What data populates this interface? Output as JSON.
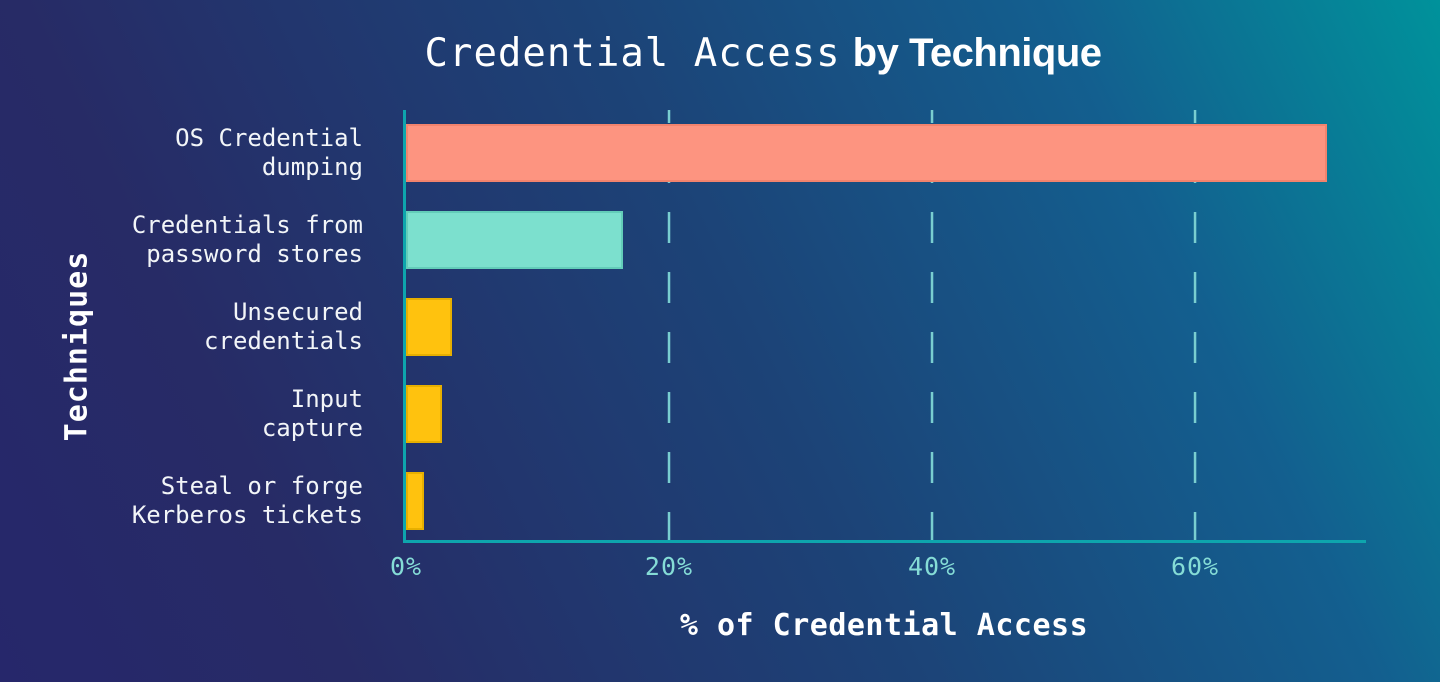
{
  "header": {
    "title_regular": "Credential Access",
    "title_bold": "by Technique"
  },
  "colors": {
    "background_start": "#26276b",
    "background_end": "#00929b",
    "axis": "#0ea5ad",
    "gridline": "#79ced0",
    "tick_text": "#85dcd6",
    "label_text": "#f2f5f8",
    "title_text": "#ffffff",
    "salmon": "#fd9480",
    "mint": "#7ce0ce",
    "yellow": "#ffc20e"
  },
  "chart_data": {
    "type": "bar",
    "orientation": "horizontal",
    "title": "Credential Access by Technique",
    "xlabel": "% of Credential Access",
    "ylabel": "Techniques",
    "categories": [
      "OS Credential dumping",
      "Credentials from password stores",
      "Unsecured credentials",
      "Input capture",
      "Steal or forge Kerberos tickets"
    ],
    "category_lines": [
      [
        "OS Credential",
        "dumping"
      ],
      [
        "Credentials from",
        "password stores"
      ],
      [
        "Unsecured",
        "credentials"
      ],
      [
        "Input",
        "capture"
      ],
      [
        "Steal or forge",
        "Kerberos tickets"
      ]
    ],
    "values": [
      70,
      16.5,
      3.5,
      2.7,
      1.4
    ],
    "bar_colors": [
      "#fd9480",
      "#7ce0ce",
      "#ffc20e",
      "#ffc20e",
      "#ffc20e"
    ],
    "bar_border_colors": [
      "#f2836d",
      "#63cdb9",
      "#e7af00",
      "#e7af00",
      "#e7af00"
    ],
    "xlim": [
      0,
      73
    ],
    "xticks": [
      0,
      20,
      40,
      60
    ],
    "xtick_labels": [
      "0%",
      "20%",
      "40%",
      "60%"
    ],
    "grid": "dashed vertical gridlines at 20%, 40%, 60%",
    "legend": "none"
  }
}
